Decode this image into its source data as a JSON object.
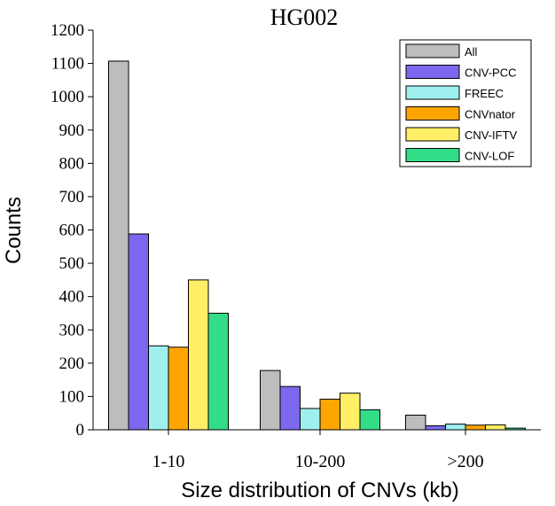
{
  "chart_data": {
    "type": "bar",
    "title": "HG002",
    "xlabel": "Size distribution of CNVs (kb)",
    "ylabel": "Counts",
    "categories": [
      "1-10",
      "10-200",
      ">200"
    ],
    "ylim": [
      0,
      1200
    ],
    "yticks": [
      0,
      100,
      200,
      300,
      400,
      500,
      600,
      700,
      800,
      900,
      1000,
      1100,
      1200
    ],
    "legend_position": "top-right",
    "series": [
      {
        "name": "All",
        "color": "#bdbdbd",
        "values": [
          1107,
          178,
          44
        ]
      },
      {
        "name": "CNV-PCC",
        "color": "#7b68ee",
        "values": [
          588,
          130,
          12
        ]
      },
      {
        "name": "FREEC",
        "color": "#9fefef",
        "values": [
          252,
          64,
          17
        ]
      },
      {
        "name": "CNVnator",
        "color": "#ffa500",
        "values": [
          248,
          92,
          14
        ]
      },
      {
        "name": "CNV-IFTV",
        "color": "#ffee66",
        "values": [
          450,
          110,
          15
        ]
      },
      {
        "name": "CNV-LOF",
        "color": "#33dd88",
        "values": [
          350,
          60,
          5
        ]
      }
    ]
  }
}
